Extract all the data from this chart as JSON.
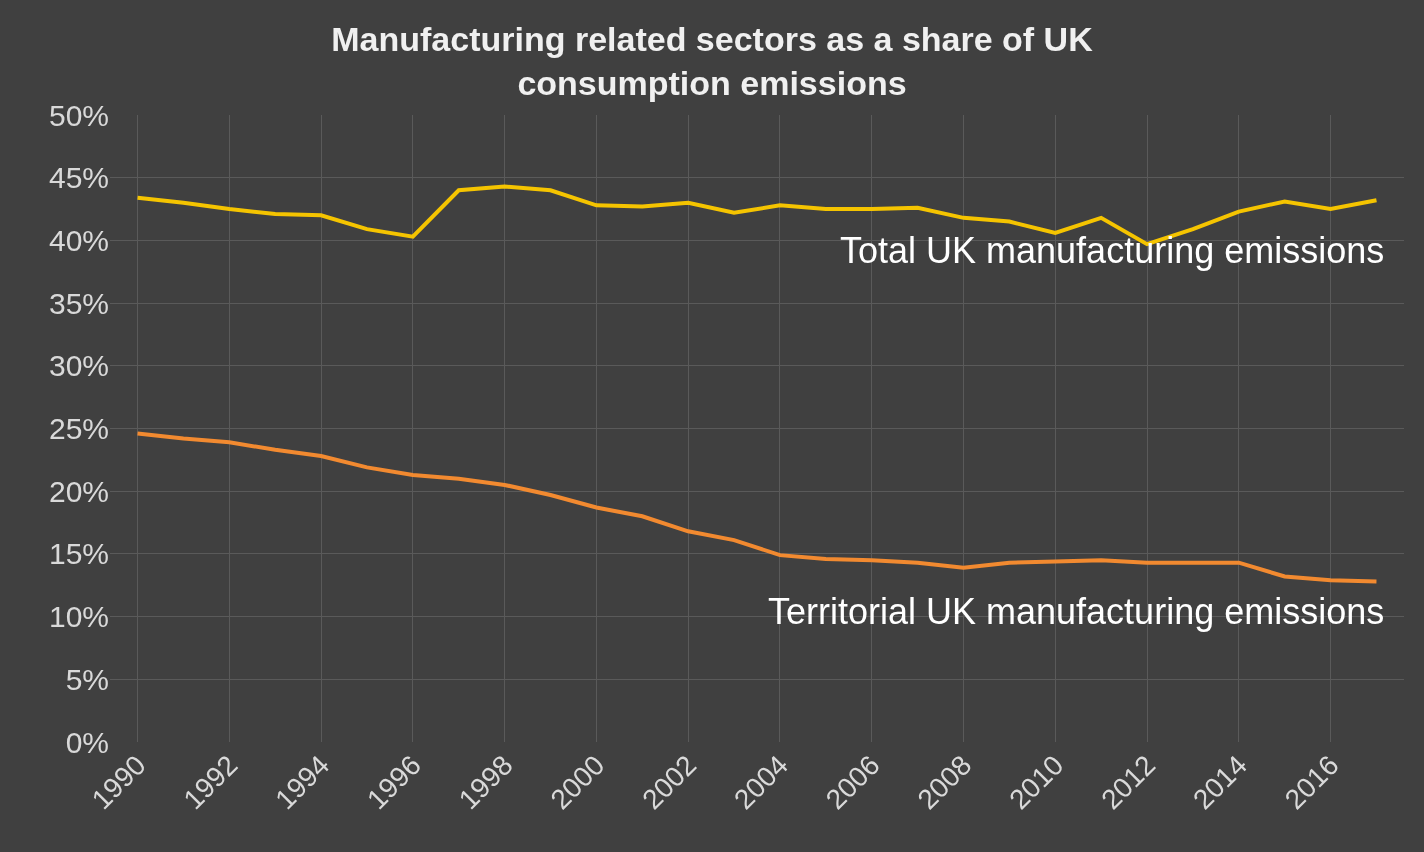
{
  "chart_data": {
    "type": "line",
    "title": "Manufacturing related sectors as a share of UK consumption emissions",
    "categories": [
      "1990",
      null,
      "1992",
      null,
      "1994",
      null,
      "1996",
      null,
      "1998",
      null,
      "2000",
      null,
      "2002",
      null,
      "2004",
      null,
      "2006",
      null,
      "2008",
      null,
      "2010",
      null,
      "2012",
      null,
      "2014",
      null,
      "2016",
      null
    ],
    "series": [
      {
        "name": "Total UK manufacturing emissions",
        "color": "#f5c400",
        "values": [
          43.4,
          43.0,
          42.5,
          42.1,
          42.0,
          40.9,
          40.3,
          44.0,
          44.3,
          44.0,
          42.8,
          42.7,
          43.0,
          42.2,
          42.8,
          42.5,
          42.5,
          42.6,
          41.8,
          41.5,
          40.6,
          41.8,
          39.7,
          40.9,
          42.3,
          43.1,
          42.5,
          43.2
        ]
      },
      {
        "name": "Territorial UK manufacturing emissions",
        "color": "#f28a30",
        "values": [
          24.6,
          24.2,
          23.9,
          23.3,
          22.8,
          21.9,
          21.3,
          21.0,
          20.5,
          19.7,
          18.7,
          18.0,
          16.8,
          16.1,
          14.9,
          14.6,
          14.5,
          14.3,
          13.9,
          14.3,
          14.4,
          14.5,
          14.3,
          14.3,
          14.3,
          13.2,
          12.9,
          12.8
        ]
      }
    ],
    "ylim": [
      0,
      50
    ],
    "yticks": [
      {
        "value": 0,
        "label": "0%"
      },
      {
        "value": 5,
        "label": "5%"
      },
      {
        "value": 10,
        "label": "10%"
      },
      {
        "value": 15,
        "label": "15%"
      },
      {
        "value": 20,
        "label": "20%"
      },
      {
        "value": 25,
        "label": "25%"
      },
      {
        "value": 30,
        "label": "30%"
      },
      {
        "value": 35,
        "label": "35%"
      },
      {
        "value": 40,
        "label": "40%"
      },
      {
        "value": 45,
        "label": "45%"
      },
      {
        "value": 50,
        "label": "50%"
      }
    ],
    "grid": true,
    "legend": false,
    "marker": "none",
    "line_style": "solid"
  }
}
